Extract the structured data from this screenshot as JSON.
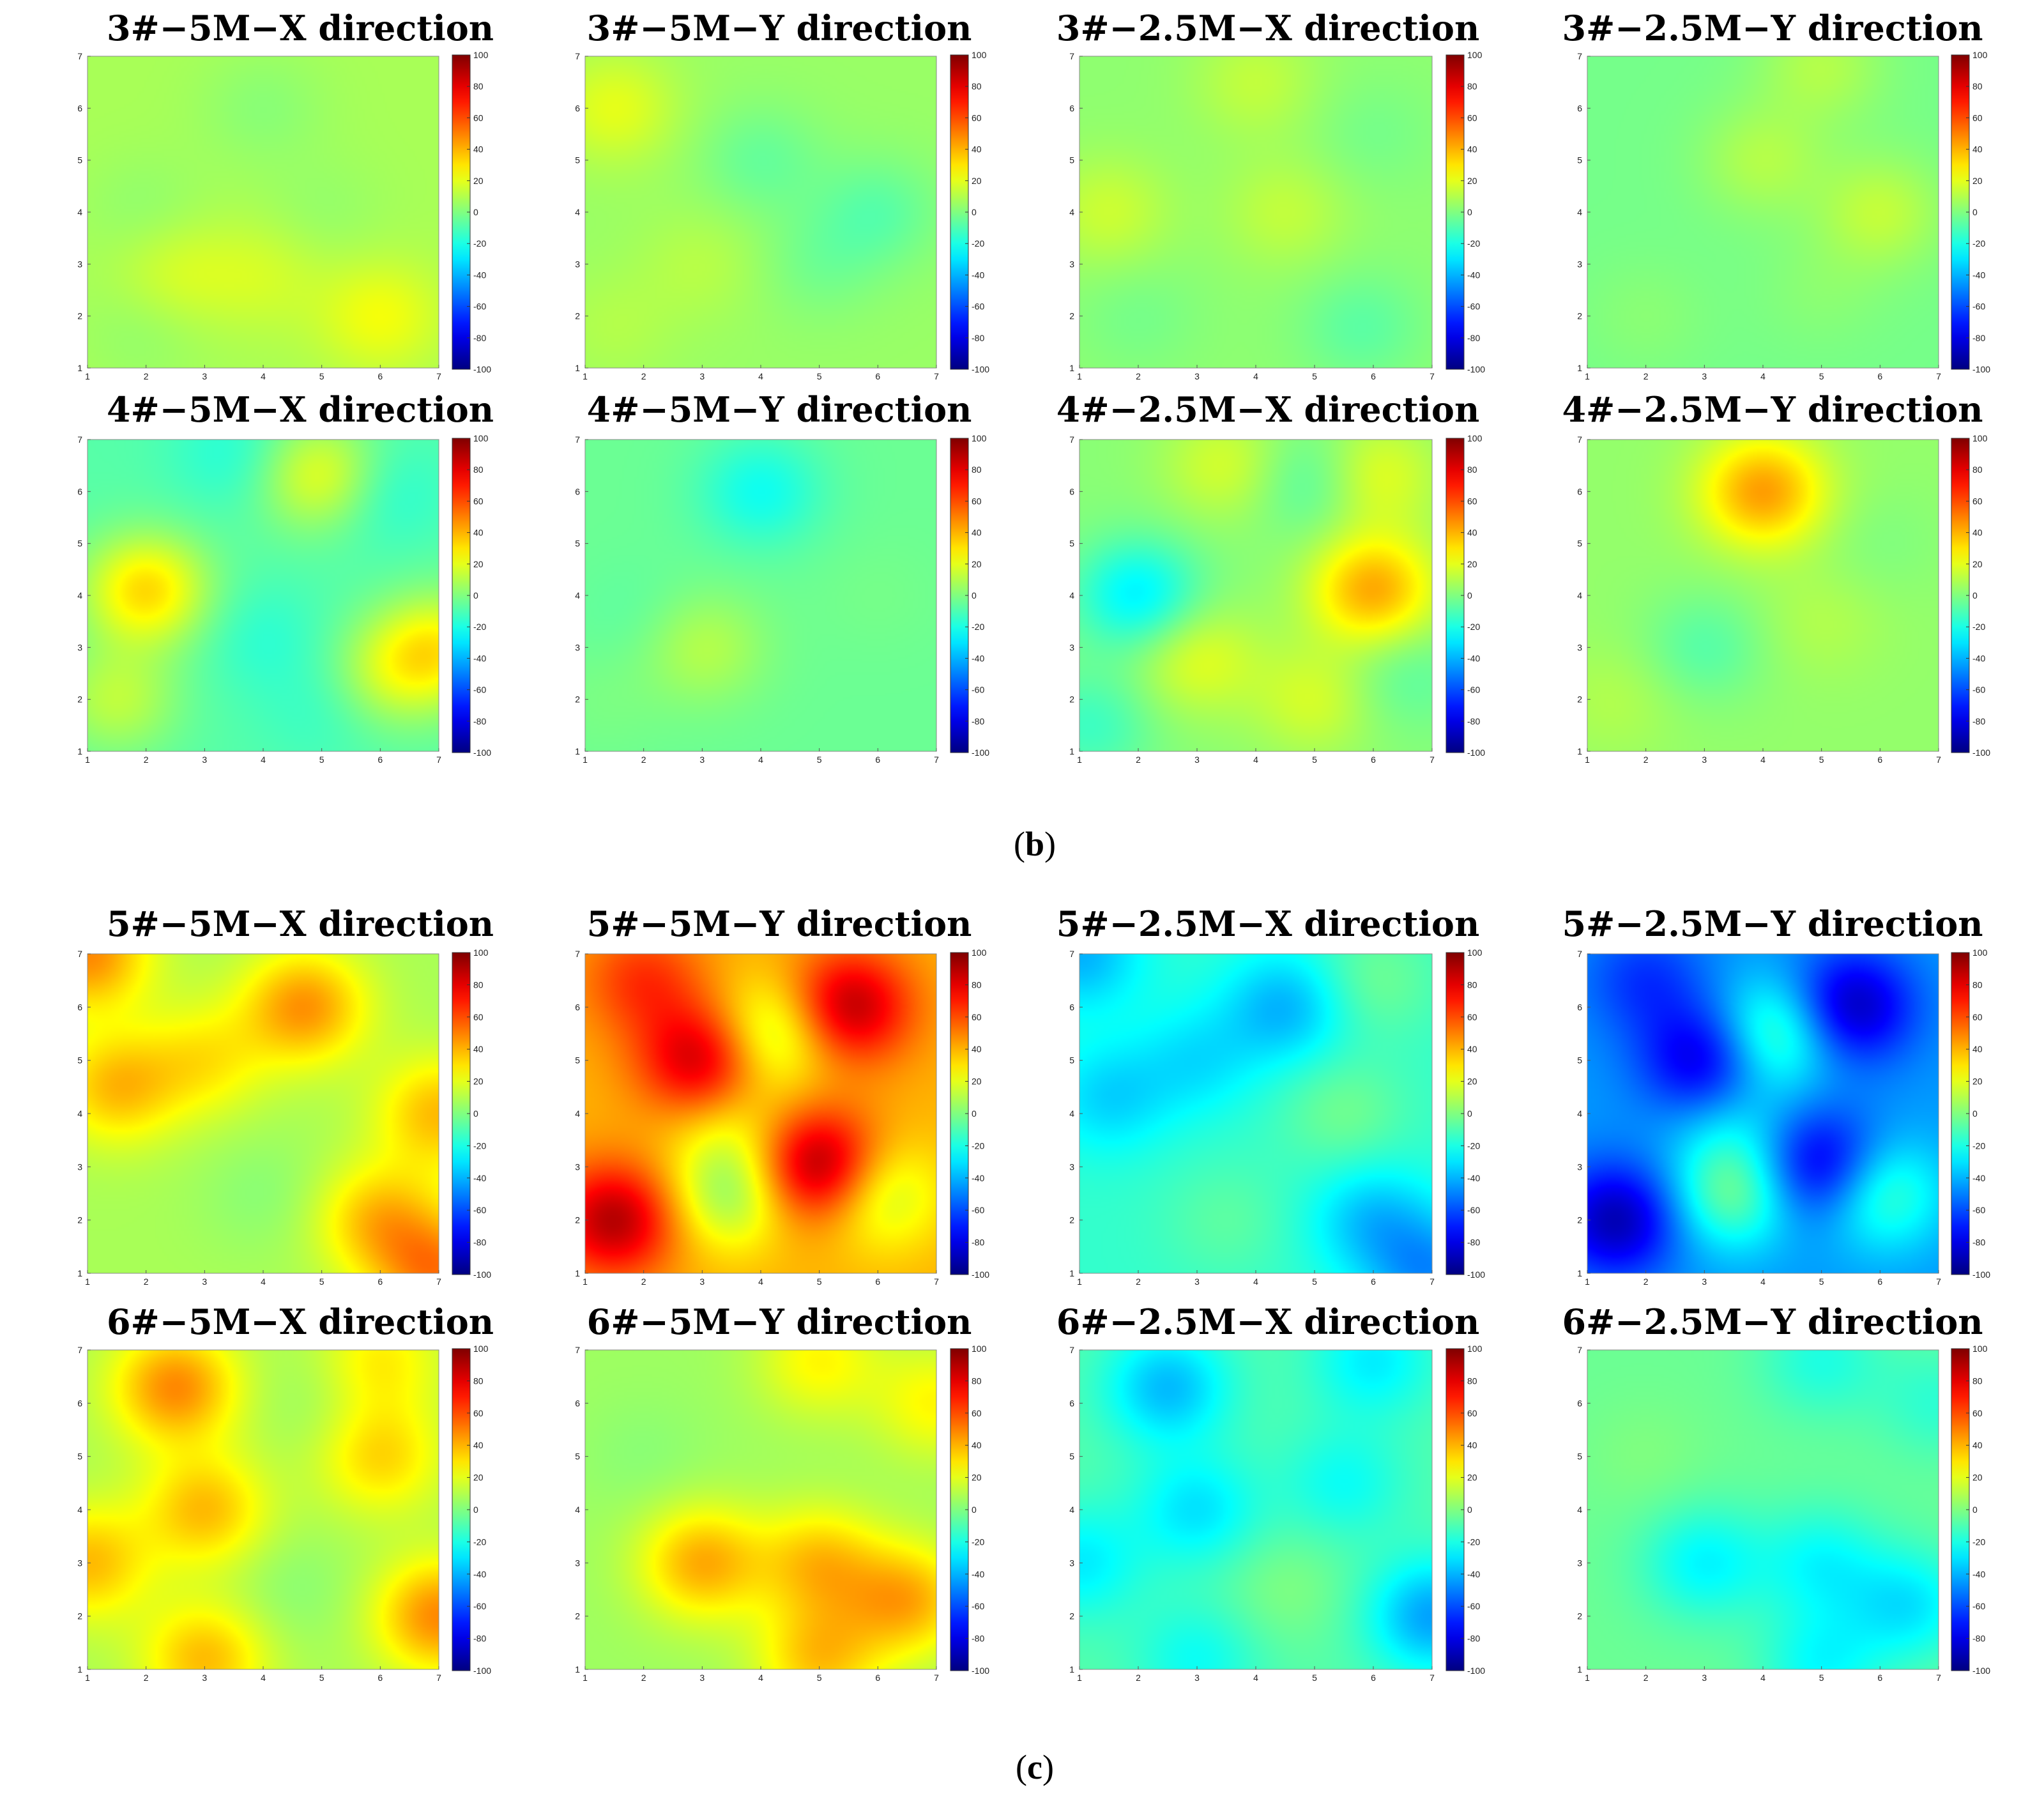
{
  "figure": {
    "caption_b": {
      "open": "(",
      "letter": "b",
      "close": ")"
    },
    "caption_c": {
      "open": "(",
      "letter": "c",
      "close": ")"
    }
  },
  "colormap": "jet",
  "colorbar_ticks": [
    100,
    80,
    60,
    40,
    20,
    0,
    -20,
    -40,
    -60,
    -80,
    -100
  ],
  "chart_data": [
    {
      "type": "heatmap",
      "title": "3#−5M−X direction",
      "x_ticks": [
        1,
        2,
        3,
        4,
        5,
        6,
        7
      ],
      "y_ticks": [
        1,
        2,
        3,
        4,
        5,
        6,
        7
      ],
      "xlim": [
        1,
        7
      ],
      "ylim": [
        1,
        7
      ],
      "clim": [
        -100,
        100
      ],
      "base": 8,
      "blobs": [
        {
          "x": 2,
          "y": 4,
          "v": -5
        },
        {
          "x": 5,
          "y": 4,
          "v": -4
        },
        {
          "x": 2.5,
          "y": 2.8,
          "v": 10
        },
        {
          "x": 6,
          "y": 2,
          "v": 15
        },
        {
          "x": 4,
          "y": 6,
          "v": -6
        },
        {
          "x": 2,
          "y": 1.8,
          "v": -5
        },
        {
          "x": 4,
          "y": 2.8,
          "v": 8
        }
      ]
    },
    {
      "type": "heatmap",
      "title": "3#−5M−Y direction",
      "x_ticks": [
        1,
        2,
        3,
        4,
        5,
        6,
        7
      ],
      "y_ticks": [
        1,
        2,
        3,
        4,
        5,
        6,
        7
      ],
      "xlim": [
        1,
        7
      ],
      "ylim": [
        1,
        7
      ],
      "clim": [
        -100,
        100
      ],
      "base": 5,
      "blobs": [
        {
          "x": 1.5,
          "y": 6,
          "v": 15
        },
        {
          "x": 4,
          "y": 5,
          "v": -10
        },
        {
          "x": 6,
          "y": 4,
          "v": -12
        },
        {
          "x": 5,
          "y": 3,
          "v": -7
        },
        {
          "x": 3,
          "y": 3,
          "v": 6
        },
        {
          "x": 1.5,
          "y": 1.8,
          "v": 5
        }
      ]
    },
    {
      "type": "heatmap",
      "title": "3#−2.5M−X direction",
      "x_ticks": [
        1,
        2,
        3,
        4,
        5,
        6,
        7
      ],
      "y_ticks": [
        1,
        2,
        3,
        4,
        5,
        6,
        7
      ],
      "xlim": [
        1,
        7
      ],
      "ylim": [
        1,
        7
      ],
      "clim": [
        -100,
        100
      ],
      "base": 3,
      "blobs": [
        {
          "x": 1.5,
          "y": 4,
          "v": 12
        },
        {
          "x": 4.5,
          "y": 4,
          "v": 10
        },
        {
          "x": 4,
          "y": 6.5,
          "v": 10
        },
        {
          "x": 2,
          "y": 2,
          "v": -5
        },
        {
          "x": 5.8,
          "y": 1.8,
          "v": -10
        },
        {
          "x": 6,
          "y": 5.5,
          "v": -5
        }
      ]
    },
    {
      "type": "heatmap",
      "title": "3#−2.5M−Y direction",
      "x_ticks": [
        1,
        2,
        3,
        4,
        5,
        6,
        7
      ],
      "y_ticks": [
        1,
        2,
        3,
        4,
        5,
        6,
        7
      ],
      "xlim": [
        1,
        7
      ],
      "ylim": [
        1,
        7
      ],
      "clim": [
        -100,
        100
      ],
      "base": -2,
      "blobs": [
        {
          "x": 4,
          "y": 5,
          "v": 12
        },
        {
          "x": 6,
          "y": 4,
          "v": 15
        },
        {
          "x": 5,
          "y": 6.8,
          "v": 12
        },
        {
          "x": 2,
          "y": 2,
          "v": 4
        },
        {
          "x": 5,
          "y": 2.5,
          "v": 4
        }
      ]
    },
    {
      "type": "heatmap",
      "title": "4#−5M−X direction",
      "x_ticks": [
        1,
        2,
        3,
        4,
        5,
        6,
        7
      ],
      "y_ticks": [
        1,
        2,
        3,
        4,
        5,
        6,
        7
      ],
      "xlim": [
        1,
        7
      ],
      "ylim": [
        1,
        7
      ],
      "clim": [
        -100,
        100
      ],
      "base": -8,
      "blobs": [
        {
          "x": 2,
          "y": 4.1,
          "v": 40
        },
        {
          "x": 5,
          "y": 6.3,
          "v": 30
        },
        {
          "x": 7,
          "y": 3,
          "v": 30
        },
        {
          "x": 1.5,
          "y": 2,
          "v": 20
        },
        {
          "x": 3.5,
          "y": 6.7,
          "v": -10
        },
        {
          "x": 6,
          "y": 6,
          "v": -12
        },
        {
          "x": 4,
          "y": 3.2,
          "v": -8
        },
        {
          "x": 6.2,
          "y": 2.5,
          "v": 20
        },
        {
          "x": 5,
          "y": 1.8,
          "v": -6
        }
      ]
    },
    {
      "type": "heatmap",
      "title": "4#−5M−Y direction",
      "x_ticks": [
        1,
        2,
        3,
        4,
        5,
        6,
        7
      ],
      "y_ticks": [
        1,
        2,
        3,
        4,
        5,
        6,
        7
      ],
      "xlim": [
        1,
        7
      ],
      "ylim": [
        1,
        7
      ],
      "clim": [
        -100,
        100
      ],
      "base": -4,
      "blobs": [
        {
          "x": 4,
          "y": 6,
          "v": -18
        },
        {
          "x": 3,
          "y": 3,
          "v": 15
        },
        {
          "x": 2,
          "y": 3.5,
          "v": -4
        },
        {
          "x": 1.3,
          "y": 2,
          "v": 3
        },
        {
          "x": 6,
          "y": 4,
          "v": 2
        }
      ]
    },
    {
      "type": "heatmap",
      "title": "4#−2.5M−X direction",
      "x_ticks": [
        1,
        2,
        3,
        4,
        5,
        6,
        7
      ],
      "y_ticks": [
        1,
        2,
        3,
        4,
        5,
        6,
        7
      ],
      "xlim": [
        1,
        7
      ],
      "ylim": [
        1,
        7
      ],
      "clim": [
        -100,
        100
      ],
      "base": 2,
      "blobs": [
        {
          "x": 2,
          "y": 4,
          "v": -30
        },
        {
          "x": 6,
          "y": 4.1,
          "v": 40
        },
        {
          "x": 3,
          "y": 2.8,
          "v": 18
        },
        {
          "x": 6,
          "y": 6.3,
          "v": 20
        },
        {
          "x": 3.5,
          "y": 6.5,
          "v": 15
        },
        {
          "x": 5,
          "y": 6.2,
          "v": -15
        },
        {
          "x": 1.2,
          "y": 1.5,
          "v": -15
        },
        {
          "x": 5,
          "y": 2,
          "v": 15
        },
        {
          "x": 6.5,
          "y": 2.5,
          "v": -10
        }
      ]
    },
    {
      "type": "heatmap",
      "title": "4#−2.5M−Y direction",
      "x_ticks": [
        1,
        2,
        3,
        4,
        5,
        6,
        7
      ],
      "y_ticks": [
        1,
        2,
        3,
        4,
        5,
        6,
        7
      ],
      "xlim": [
        1,
        7
      ],
      "ylim": [
        1,
        7
      ],
      "clim": [
        -100,
        100
      ],
      "base": 4,
      "blobs": [
        {
          "x": 4,
          "y": 6,
          "v": 40
        },
        {
          "x": 3,
          "y": 3,
          "v": -12
        },
        {
          "x": 5,
          "y": 3.5,
          "v": 6
        },
        {
          "x": 1.5,
          "y": 2,
          "v": 6
        },
        {
          "x": 6,
          "y": 5,
          "v": -4
        }
      ]
    },
    {
      "type": "heatmap",
      "title": "5#−5M−X direction",
      "x_ticks": [
        1,
        2,
        3,
        4,
        5,
        6,
        7
      ],
      "y_ticks": [
        1,
        2,
        3,
        4,
        5,
        6,
        7
      ],
      "xlim": [
        1,
        7
      ],
      "ylim": [
        1,
        7
      ],
      "clim": [
        -100,
        100
      ],
      "base": 8,
      "blobs": [
        {
          "x": 4.7,
          "y": 6,
          "v": 38
        },
        {
          "x": 1.5,
          "y": 4.5,
          "v": 30
        },
        {
          "x": 3,
          "y": 5,
          "v": 20
        },
        {
          "x": 6,
          "y": 2,
          "v": 30
        },
        {
          "x": 7,
          "y": 1,
          "v": 40
        },
        {
          "x": 1,
          "y": 7,
          "v": 40
        },
        {
          "x": 7,
          "y": 4,
          "v": 30
        },
        {
          "x": 4,
          "y": 2.5,
          "v": -6
        }
      ]
    },
    {
      "type": "heatmap",
      "title": "5#−5M−Y direction",
      "x_ticks": [
        1,
        2,
        3,
        4,
        5,
        6,
        7
      ],
      "y_ticks": [
        1,
        2,
        3,
        4,
        5,
        6,
        7
      ],
      "xlim": [
        1,
        7
      ],
      "ylim": [
        1,
        7
      ],
      "clim": [
        -100,
        100
      ],
      "base": 40,
      "blobs": [
        {
          "x": 1.5,
          "y": 2,
          "v": 50
        },
        {
          "x": 3,
          "y": 5,
          "v": 48
        },
        {
          "x": 5,
          "y": 3,
          "v": 58
        },
        {
          "x": 5.5,
          "y": 6,
          "v": 50
        },
        {
          "x": 3.5,
          "y": 2.5,
          "v": -35
        },
        {
          "x": 4.2,
          "y": 5.5,
          "v": -35
        },
        {
          "x": 6,
          "y": 2.5,
          "v": -30
        },
        {
          "x": 2,
          "y": 6.5,
          "v": 25
        },
        {
          "x": 3.5,
          "y": 3.8,
          "v": -15
        }
      ]
    },
    {
      "type": "heatmap",
      "title": "5#−2.5M−X direction",
      "x_ticks": [
        1,
        2,
        3,
        4,
        5,
        6,
        7
      ],
      "y_ticks": [
        1,
        2,
        3,
        4,
        5,
        6,
        7
      ],
      "xlim": [
        1,
        7
      ],
      "ylim": [
        1,
        7
      ],
      "clim": [
        -100,
        100
      ],
      "base": -15,
      "blobs": [
        {
          "x": 4.5,
          "y": 6,
          "v": -25
        },
        {
          "x": 1.5,
          "y": 4.3,
          "v": -18
        },
        {
          "x": 3,
          "y": 5,
          "v": -15
        },
        {
          "x": 6,
          "y": 2,
          "v": -22
        },
        {
          "x": 7,
          "y": 1,
          "v": -30
        },
        {
          "x": 5.5,
          "y": 4,
          "v": 12
        },
        {
          "x": 6,
          "y": 6.5,
          "v": 12
        },
        {
          "x": 3.5,
          "y": 2,
          "v": 8
        },
        {
          "x": 1,
          "y": 7,
          "v": -25
        }
      ]
    },
    {
      "type": "heatmap",
      "title": "5#−2.5M−Y direction",
      "x_ticks": [
        1,
        2,
        3,
        4,
        5,
        6,
        7
      ],
      "y_ticks": [
        1,
        2,
        3,
        4,
        5,
        6,
        7
      ],
      "xlim": [
        1,
        7
      ],
      "ylim": [
        1,
        7
      ],
      "clim": [
        -100,
        100
      ],
      "base": -45,
      "blobs": [
        {
          "x": 1.5,
          "y": 2,
          "v": -45
        },
        {
          "x": 3,
          "y": 5,
          "v": -40
        },
        {
          "x": 5,
          "y": 3,
          "v": -42
        },
        {
          "x": 5.5,
          "y": 6,
          "v": -45
        },
        {
          "x": 3.5,
          "y": 2.5,
          "v": 40
        },
        {
          "x": 4.2,
          "y": 5.5,
          "v": 40
        },
        {
          "x": 6,
          "y": 2.5,
          "v": 35
        },
        {
          "x": 3.5,
          "y": 3.8,
          "v": 15
        },
        {
          "x": 2,
          "y": 6.5,
          "v": -20
        }
      ]
    },
    {
      "type": "heatmap",
      "title": "6#−5M−X direction",
      "x_ticks": [
        1,
        2,
        3,
        4,
        5,
        6,
        7
      ],
      "y_ticks": [
        1,
        2,
        3,
        4,
        5,
        6,
        7
      ],
      "xlim": [
        1,
        7
      ],
      "ylim": [
        1,
        7
      ],
      "clim": [
        -100,
        100
      ],
      "base": 8,
      "blobs": [
        {
          "x": 2.5,
          "y": 6.3,
          "v": 40
        },
        {
          "x": 3,
          "y": 4,
          "v": 30
        },
        {
          "x": 6,
          "y": 5,
          "v": 25
        },
        {
          "x": 7,
          "y": 2,
          "v": 40
        },
        {
          "x": 1,
          "y": 3,
          "v": 30
        },
        {
          "x": 3,
          "y": 1.2,
          "v": 30
        },
        {
          "x": 6,
          "y": 6.8,
          "v": 20
        },
        {
          "x": 4.5,
          "y": 2.5,
          "v": -6
        },
        {
          "x": 5,
          "y": 6,
          "v": -5
        }
      ]
    },
    {
      "type": "heatmap",
      "title": "6#−5M−Y direction",
      "x_ticks": [
        1,
        2,
        3,
        4,
        5,
        6,
        7
      ],
      "y_ticks": [
        1,
        2,
        3,
        4,
        5,
        6,
        7
      ],
      "xlim": [
        1,
        7
      ],
      "ylim": [
        1,
        7
      ],
      "clim": [
        -100,
        100
      ],
      "base": 6,
      "blobs": [
        {
          "x": 3,
          "y": 3,
          "v": 35
        },
        {
          "x": 5,
          "y": 3,
          "v": 30
        },
        {
          "x": 6.5,
          "y": 2.3,
          "v": 35
        },
        {
          "x": 5,
          "y": 1.2,
          "v": 30
        },
        {
          "x": 5,
          "y": 6.8,
          "v": 20
        },
        {
          "x": 7,
          "y": 6,
          "v": 20
        },
        {
          "x": 2,
          "y": 5,
          "v": -4
        }
      ]
    },
    {
      "type": "heatmap",
      "title": "6#−2.5M−X direction",
      "x_ticks": [
        1,
        2,
        3,
        4,
        5,
        6,
        7
      ],
      "y_ticks": [
        1,
        2,
        3,
        4,
        5,
        6,
        7
      ],
      "xlim": [
        1,
        7
      ],
      "ylim": [
        1,
        7
      ],
      "clim": [
        -100,
        100
      ],
      "base": -8,
      "blobs": [
        {
          "x": 2.5,
          "y": 6.3,
          "v": -30
        },
        {
          "x": 3,
          "y": 4,
          "v": -22
        },
        {
          "x": 5.5,
          "y": 4.5,
          "v": -15
        },
        {
          "x": 7,
          "y": 2,
          "v": -35
        },
        {
          "x": 1,
          "y": 3,
          "v": -20
        },
        {
          "x": 3,
          "y": 1.2,
          "v": -15
        },
        {
          "x": 6,
          "y": 6.8,
          "v": -20
        },
        {
          "x": 4.5,
          "y": 2.5,
          "v": 8
        }
      ]
    },
    {
      "type": "heatmap",
      "title": "6#−2.5M−Y direction",
      "x_ticks": [
        1,
        2,
        3,
        4,
        5,
        6,
        7
      ],
      "y_ticks": [
        1,
        2,
        3,
        4,
        5,
        6,
        7
      ],
      "xlim": [
        1,
        7
      ],
      "ylim": [
        1,
        7
      ],
      "clim": [
        -100,
        100
      ],
      "base": -4,
      "blobs": [
        {
          "x": 3,
          "y": 3,
          "v": -22
        },
        {
          "x": 5,
          "y": 3,
          "v": -20
        },
        {
          "x": 6.5,
          "y": 2.2,
          "v": -25
        },
        {
          "x": 5,
          "y": 1.1,
          "v": -20
        },
        {
          "x": 5,
          "y": 6.8,
          "v": -15
        },
        {
          "x": 7,
          "y": 6,
          "v": -12
        },
        {
          "x": 2,
          "y": 5,
          "v": 4
        }
      ]
    }
  ]
}
